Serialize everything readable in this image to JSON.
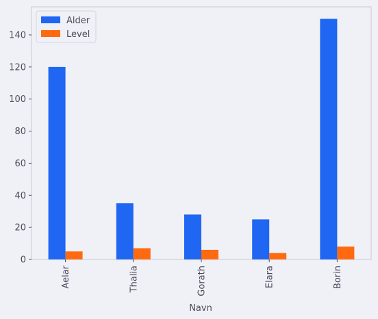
{
  "chart_data": {
    "type": "bar",
    "categories": [
      "Aelar",
      "Thalia",
      "Gorath",
      "Elara",
      "Borin"
    ],
    "series": [
      {
        "name": "Alder",
        "values": [
          120,
          35,
          28,
          25,
          150
        ],
        "color": "#1f66f2"
      },
      {
        "name": "Level",
        "values": [
          5,
          7,
          6,
          4,
          8
        ],
        "color": "#ff6a10"
      }
    ],
    "xlabel": "Navn",
    "ylabel": "",
    "ylim": [
      0,
      157.5
    ],
    "yticks": [
      0,
      20,
      40,
      60,
      80,
      100,
      120,
      140
    ],
    "legend_position": "top-left",
    "grid": false,
    "x_tick_rotation": 90
  }
}
